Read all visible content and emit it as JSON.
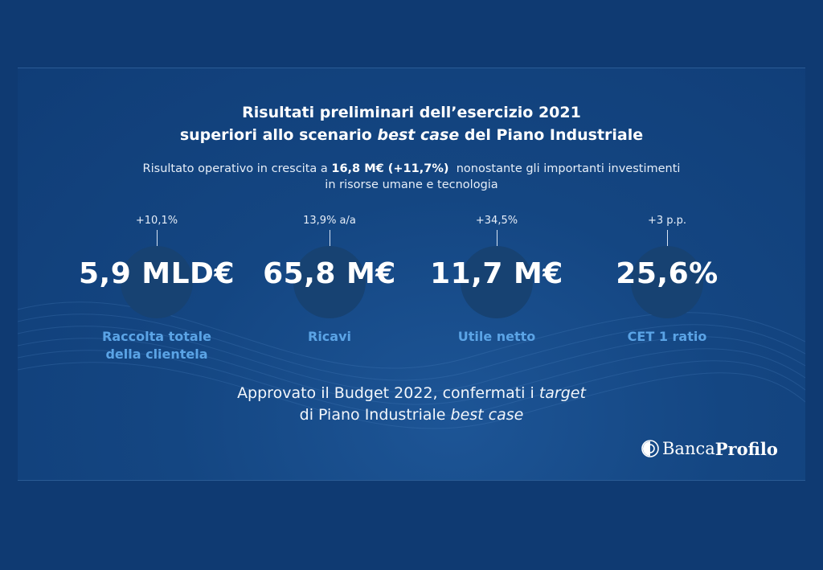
{
  "title": {
    "line1": "Risultati preliminari dell’esercizio 2021",
    "line2_before": "superiori allo scenario ",
    "line2_emph": "best case",
    "line2_after": " del Piano Industriale"
  },
  "subtitle": {
    "before": "Risultato operativo in crescita a ",
    "strong": "16,8 M€ (+11,7%)",
    "after": "  nonostante gli importanti investimenti",
    "line2": "in risorse umane e tecnologia"
  },
  "kpis": [
    {
      "delta": "+10,1%",
      "value": "5,9 MLD€",
      "label_line1": "Raccolta totale",
      "label_line2": "della clientela"
    },
    {
      "delta": "13,9% a/a",
      "value": "65,8 M€",
      "label_line1": "Ricavi",
      "label_line2": ""
    },
    {
      "delta": "+34,5%",
      "value": "11,7 M€",
      "label_line1": "Utile netto",
      "label_line2": ""
    },
    {
      "delta": "+3 p.p.",
      "value": "25,6%",
      "label_line1": "CET 1 ratio",
      "label_line2": ""
    }
  ],
  "budget": {
    "line1_before": "Approvato il Budget 2022, confermati i ",
    "line1_emph": "target",
    "line2_before": "di Piano Industriale ",
    "line2_emph": "best case"
  },
  "logo": {
    "banca": "Banca",
    "profilo": "Profilo",
    "icon": "bank-emblem-icon"
  },
  "colors": {
    "background": "#0f3a72",
    "accent_label": "#5ba4e6",
    "circle": "#174272"
  }
}
